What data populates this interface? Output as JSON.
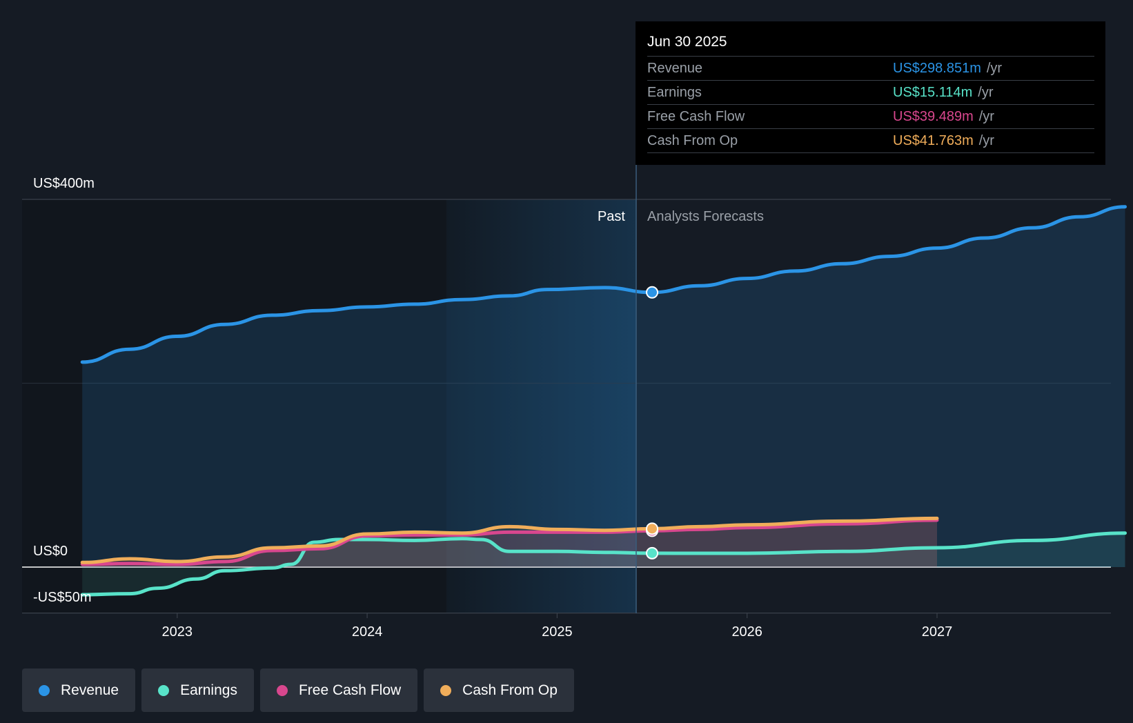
{
  "chart_data": {
    "type": "line",
    "y_axis_labels": [
      "US$400m",
      "US$0",
      "-US$50m"
    ],
    "ylim": [
      -50,
      400
    ],
    "x_ticks": [
      "2023",
      "2024",
      "2025",
      "2026",
      "2027"
    ],
    "past_label": "Past",
    "forecast_label": "Analysts Forecasts",
    "series": [
      {
        "name": "Revenue",
        "color": "#2b94e6",
        "points": [
          [
            2022.5,
            223
          ],
          [
            2022.75,
            237
          ],
          [
            2023.0,
            251
          ],
          [
            2023.25,
            264
          ],
          [
            2023.5,
            274
          ],
          [
            2023.75,
            279
          ],
          [
            2024.0,
            283
          ],
          [
            2024.25,
            286
          ],
          [
            2024.5,
            291
          ],
          [
            2024.75,
            295
          ],
          [
            2024.95,
            302
          ],
          [
            2025.25,
            304
          ],
          [
            2025.5,
            298.851
          ],
          [
            2025.75,
            306
          ],
          [
            2026.0,
            314
          ],
          [
            2026.25,
            322
          ],
          [
            2026.5,
            330
          ],
          [
            2026.75,
            338
          ],
          [
            2027.0,
            347
          ],
          [
            2027.25,
            358
          ],
          [
            2027.5,
            369
          ],
          [
            2027.75,
            381
          ],
          [
            2027.99,
            392
          ]
        ]
      },
      {
        "name": "Earnings",
        "color": "#58e3c9",
        "points": [
          [
            2022.5,
            -30
          ],
          [
            2022.75,
            -29
          ],
          [
            2022.9,
            -23
          ],
          [
            2023.1,
            -13
          ],
          [
            2023.25,
            -4
          ],
          [
            2023.5,
            -1
          ],
          [
            2023.6,
            3
          ],
          [
            2023.72,
            27
          ],
          [
            2023.85,
            30
          ],
          [
            2024.0,
            30
          ],
          [
            2024.25,
            29
          ],
          [
            2024.5,
            31
          ],
          [
            2024.6,
            30
          ],
          [
            2024.75,
            17
          ],
          [
            2025.0,
            17
          ],
          [
            2025.25,
            16
          ],
          [
            2025.5,
            15.114
          ],
          [
            2025.75,
            15
          ],
          [
            2026.0,
            15
          ],
          [
            2026.5,
            17
          ],
          [
            2027.0,
            21
          ],
          [
            2027.5,
            29
          ],
          [
            2027.99,
            37
          ]
        ]
      },
      {
        "name": "Free Cash Flow",
        "color": "#d8478e",
        "points": [
          [
            2022.5,
            3
          ],
          [
            2022.75,
            4
          ],
          [
            2023.0,
            3
          ],
          [
            2023.25,
            6
          ],
          [
            2023.5,
            18
          ],
          [
            2023.75,
            20
          ],
          [
            2024.0,
            34
          ],
          [
            2024.25,
            35
          ],
          [
            2024.5,
            35
          ],
          [
            2024.75,
            38
          ],
          [
            2025.0,
            38
          ],
          [
            2025.25,
            38
          ],
          [
            2025.5,
            39.489
          ],
          [
            2025.75,
            41
          ],
          [
            2026.0,
            43
          ],
          [
            2026.5,
            47
          ],
          [
            2027.0,
            51
          ]
        ]
      },
      {
        "name": "Cash From Op",
        "color": "#f0ad5a",
        "points": [
          [
            2022.5,
            5
          ],
          [
            2022.75,
            9
          ],
          [
            2023.0,
            6
          ],
          [
            2023.25,
            11
          ],
          [
            2023.5,
            21
          ],
          [
            2023.75,
            23
          ],
          [
            2024.0,
            36
          ],
          [
            2024.25,
            38
          ],
          [
            2024.5,
            37
          ],
          [
            2024.75,
            44
          ],
          [
            2025.0,
            41
          ],
          [
            2025.25,
            40
          ],
          [
            2025.5,
            41.763
          ],
          [
            2025.75,
            44
          ],
          [
            2026.0,
            46
          ],
          [
            2026.5,
            50
          ],
          [
            2027.0,
            53
          ]
        ]
      }
    ]
  },
  "tooltip": {
    "date": "Jun 30 2025",
    "rows": [
      {
        "label": "Revenue",
        "value": "US$298.851m",
        "unit": "/yr",
        "color": "#2b94e6"
      },
      {
        "label": "Earnings",
        "value": "US$15.114m",
        "unit": "/yr",
        "color": "#58e3c9"
      },
      {
        "label": "Free Cash Flow",
        "value": "US$39.489m",
        "unit": "/yr",
        "color": "#d8478e"
      },
      {
        "label": "Cash From Op",
        "value": "US$41.763m",
        "unit": "/yr",
        "color": "#f0ad5a"
      }
    ]
  },
  "legend": [
    {
      "label": "Revenue",
      "color": "#2b94e6"
    },
    {
      "label": "Earnings",
      "color": "#58e3c9"
    },
    {
      "label": "Free Cash Flow",
      "color": "#d8478e"
    },
    {
      "label": "Cash From Op",
      "color": "#f0ad5a"
    }
  ]
}
